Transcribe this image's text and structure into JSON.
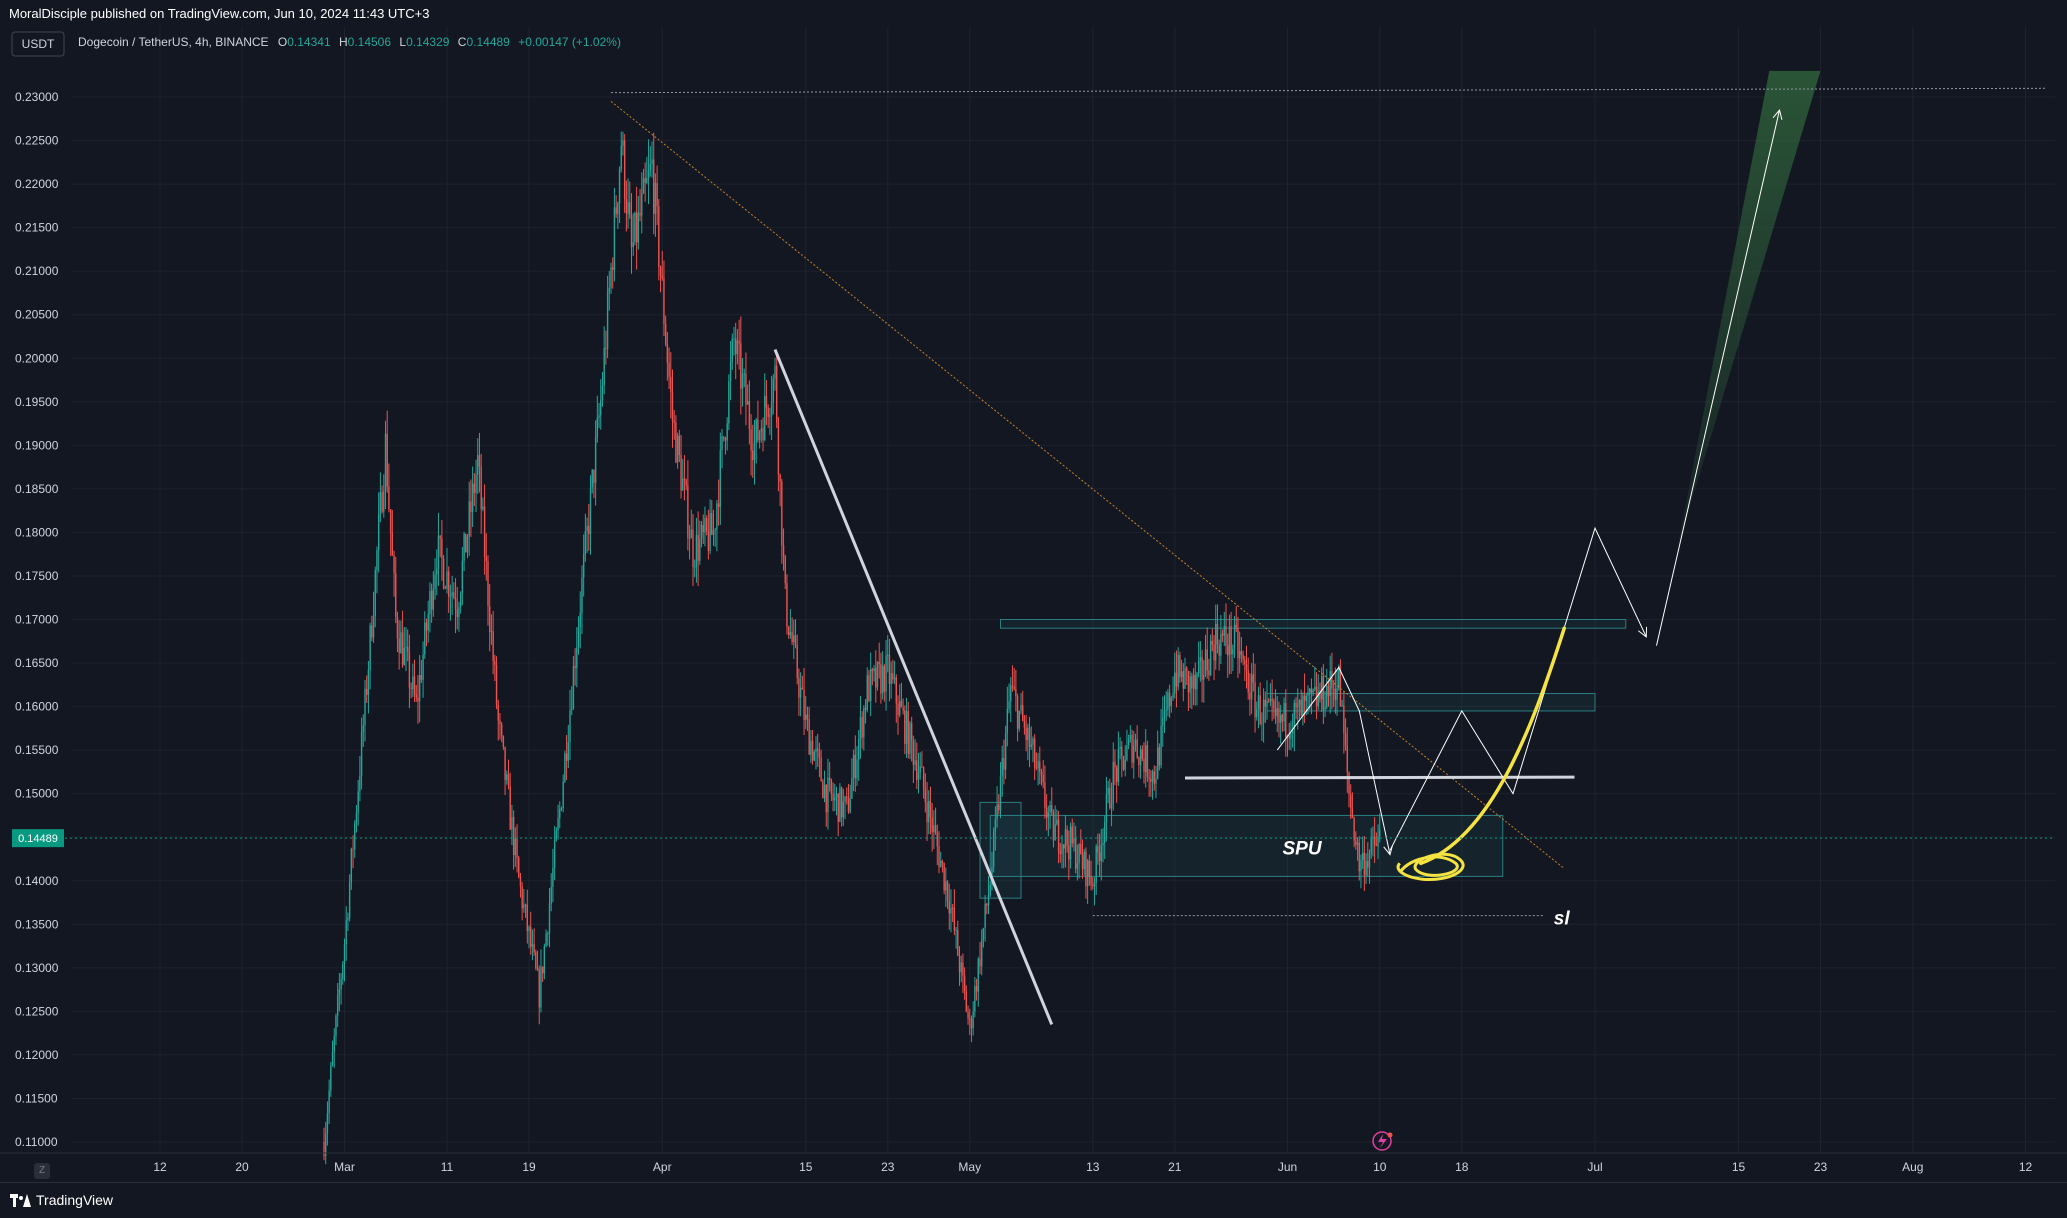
{
  "header": {
    "published": "MoralDisciple published on TradingView.com, Jun 10, 2024 11:43 UTC+3"
  },
  "legend": {
    "currency_button": "USDT",
    "symbol": "Dogecoin / TetherUS, 4h, BINANCE",
    "o_label": "O",
    "o_value": "0.14341",
    "h_label": "H",
    "h_value": "0.14506",
    "l_label": "L",
    "l_value": "0.14329",
    "c_label": "C",
    "c_value": "0.14489",
    "change": "+0.00147 (+1.02%)"
  },
  "footer": {
    "brand": "TradingView",
    "timezone_button": "Z"
  },
  "colors": {
    "background": "#131722",
    "grid": "#1e222d",
    "up": "#26a69a",
    "down": "#ef5350",
    "price_badge": "#089981",
    "annotation_white": "#ffffff",
    "annotation_yellow": "#f5e342",
    "trendline_orange": "#c8822a",
    "zone_teal": "#2a7f83",
    "arrow_green": "#2e5f3a"
  },
  "chart_data": {
    "type": "candlestick",
    "symbol": "DOGEUSDT",
    "interval": "4h",
    "ylim": [
      0.1085,
      0.2325
    ],
    "y_ticks": [
      "0.11000",
      "0.11500",
      "0.12000",
      "0.12500",
      "0.13000",
      "0.13500",
      "0.14000",
      "0.14500",
      "0.15000",
      "0.15500",
      "0.16000",
      "0.16500",
      "0.17000",
      "0.17500",
      "0.18000",
      "0.18500",
      "0.19000",
      "0.19500",
      "0.20000",
      "0.20500",
      "0.21000",
      "0.21500",
      "0.22000",
      "0.22500",
      "0.23000"
    ],
    "x_ticks": [
      {
        "label": "12",
        "date": "2024-02-12"
      },
      {
        "label": "20",
        "date": "2024-02-20"
      },
      {
        "label": "Mar",
        "date": "2024-03-01"
      },
      {
        "label": "11",
        "date": "2024-03-11"
      },
      {
        "label": "19",
        "date": "2024-03-19"
      },
      {
        "label": "Apr",
        "date": "2024-04-01"
      },
      {
        "label": "15",
        "date": "2024-04-15"
      },
      {
        "label": "23",
        "date": "2024-04-23"
      },
      {
        "label": "May",
        "date": "2024-05-01"
      },
      {
        "label": "13",
        "date": "2024-05-13"
      },
      {
        "label": "21",
        "date": "2024-05-21"
      },
      {
        "label": "Jun",
        "date": "2024-06-01"
      },
      {
        "label": "10",
        "date": "2024-06-10"
      },
      {
        "label": "18",
        "date": "2024-06-18"
      },
      {
        "label": "Jul",
        "date": "2024-07-01"
      },
      {
        "label": "15",
        "date": "2024-07-15"
      },
      {
        "label": "23",
        "date": "2024-07-23"
      },
      {
        "label": "Aug",
        "date": "2024-08-01"
      },
      {
        "label": "12",
        "date": "2024-08-12"
      }
    ],
    "last_price": "0.14489",
    "path": [
      {
        "d": "2024-02-28",
        "p": 0.11
      },
      {
        "d": "2024-03-01",
        "p": 0.133
      },
      {
        "d": "2024-03-03",
        "p": 0.16
      },
      {
        "d": "2024-03-05",
        "p": 0.19
      },
      {
        "d": "2024-03-06",
        "p": 0.17
      },
      {
        "d": "2024-03-08",
        "p": 0.16
      },
      {
        "d": "2024-03-10",
        "p": 0.178
      },
      {
        "d": "2024-03-12",
        "p": 0.172
      },
      {
        "d": "2024-03-14",
        "p": 0.188
      },
      {
        "d": "2024-03-16",
        "p": 0.158
      },
      {
        "d": "2024-03-18",
        "p": 0.14
      },
      {
        "d": "2024-03-20",
        "p": 0.127
      },
      {
        "d": "2024-03-22",
        "p": 0.148
      },
      {
        "d": "2024-03-24",
        "p": 0.172
      },
      {
        "d": "2024-03-26",
        "p": 0.195
      },
      {
        "d": "2024-03-28",
        "p": 0.225
      },
      {
        "d": "2024-03-29",
        "p": 0.212
      },
      {
        "d": "2024-03-31",
        "p": 0.222
      },
      {
        "d": "2024-04-02",
        "p": 0.193
      },
      {
        "d": "2024-04-04",
        "p": 0.178
      },
      {
        "d": "2024-04-06",
        "p": 0.18
      },
      {
        "d": "2024-04-08",
        "p": 0.202
      },
      {
        "d": "2024-04-10",
        "p": 0.19
      },
      {
        "d": "2024-04-12",
        "p": 0.198
      },
      {
        "d": "2024-04-13",
        "p": 0.172
      },
      {
        "d": "2024-04-15",
        "p": 0.158
      },
      {
        "d": "2024-04-17",
        "p": 0.15
      },
      {
        "d": "2024-04-19",
        "p": 0.148
      },
      {
        "d": "2024-04-21",
        "p": 0.162
      },
      {
        "d": "2024-04-23",
        "p": 0.164
      },
      {
        "d": "2024-04-26",
        "p": 0.153
      },
      {
        "d": "2024-04-29",
        "p": 0.138
      },
      {
        "d": "2024-05-01",
        "p": 0.123
      },
      {
        "d": "2024-05-03",
        "p": 0.14
      },
      {
        "d": "2024-05-05",
        "p": 0.162
      },
      {
        "d": "2024-05-07",
        "p": 0.155
      },
      {
        "d": "2024-05-09",
        "p": 0.146
      },
      {
        "d": "2024-05-11",
        "p": 0.144
      },
      {
        "d": "2024-05-13",
        "p": 0.14
      },
      {
        "d": "2024-05-15",
        "p": 0.152
      },
      {
        "d": "2024-05-17",
        "p": 0.156
      },
      {
        "d": "2024-05-19",
        "p": 0.152
      },
      {
        "d": "2024-05-21",
        "p": 0.164
      },
      {
        "d": "2024-05-23",
        "p": 0.162
      },
      {
        "d": "2024-05-25",
        "p": 0.168
      },
      {
        "d": "2024-05-27",
        "p": 0.167
      },
      {
        "d": "2024-05-29",
        "p": 0.16
      },
      {
        "d": "2024-05-31",
        "p": 0.158
      },
      {
        "d": "2024-06-02",
        "p": 0.159
      },
      {
        "d": "2024-06-04",
        "p": 0.161
      },
      {
        "d": "2024-06-06",
        "p": 0.163
      },
      {
        "d": "2024-06-07",
        "p": 0.15
      },
      {
        "d": "2024-06-08",
        "p": 0.142
      },
      {
        "d": "2024-06-09",
        "p": 0.143
      },
      {
        "d": "2024-06-10",
        "p": 0.1449
      }
    ],
    "annotations": {
      "labels": [
        "SPU",
        "sl"
      ],
      "trendline_top_left": {
        "from": [
          "2024-03-27",
          0.2305
        ],
        "to": [
          "2024-08-14",
          0.231
        ]
      },
      "orange_trendline": {
        "from": [
          "2024-03-27",
          0.2295
        ],
        "to": [
          "2024-06-28",
          0.1414
        ]
      },
      "white_trendline": {
        "from": [
          "2024-04-12",
          0.201
        ],
        "to": [
          "2024-05-09",
          0.1235
        ]
      },
      "white_level": {
        "from": [
          "2024-05-22",
          0.1518
        ],
        "to": [
          "2024-06-29",
          0.1519
        ]
      },
      "sl_line": {
        "from": [
          "2024-05-13",
          0.136
        ],
        "to": [
          "2024-06-26",
          0.136
        ]
      },
      "zone_upper": {
        "x": [
          "2024-05-04",
          "2024-07-04"
        ],
        "y": [
          0.169,
          0.17
        ]
      },
      "zone_mid": {
        "x": [
          "2024-05-30",
          "2024-07-01"
        ],
        "y": [
          0.1595,
          0.1615
        ]
      },
      "zone_lower": {
        "x": [
          "2024-05-03",
          "2024-06-22"
        ],
        "y": [
          0.1405,
          0.1475
        ]
      },
      "zone_small": {
        "x": [
          "2024-05-02",
          "2024-05-06"
        ],
        "y": [
          0.138,
          0.149
        ]
      },
      "projection_path": [
        [
          "2024-06-11",
          0.1435
        ],
        [
          "2024-06-18",
          0.1595
        ],
        [
          "2024-06-23",
          0.15
        ],
        [
          "2024-07-01",
          0.1805
        ],
        [
          "2024-07-06",
          0.168
        ]
      ],
      "projection_long": [
        [
          "2024-07-07",
          0.167
        ],
        [
          "2024-07-19",
          0.2285
        ]
      ],
      "small_path": [
        [
          "2024-05-31",
          0.155
        ],
        [
          "2024-06-06",
          0.1645
        ],
        [
          "2024-06-08",
          0.1595
        ],
        [
          "2024-06-11",
          0.143
        ]
      ],
      "green_band": [
        [
          "2024-07-09",
          0.178
        ],
        [
          "2024-07-18",
          0.233
        ],
        [
          "2024-07-23",
          0.233
        ],
        [
          "2024-07-09",
          0.178
        ]
      ],
      "yellow_curve": [
        [
          "2024-06-14",
          0.142
        ],
        [
          "2024-06-21",
          0.145
        ],
        [
          "2024-06-25",
          0.158
        ],
        [
          "2024-06-28",
          0.169
        ]
      ]
    }
  }
}
